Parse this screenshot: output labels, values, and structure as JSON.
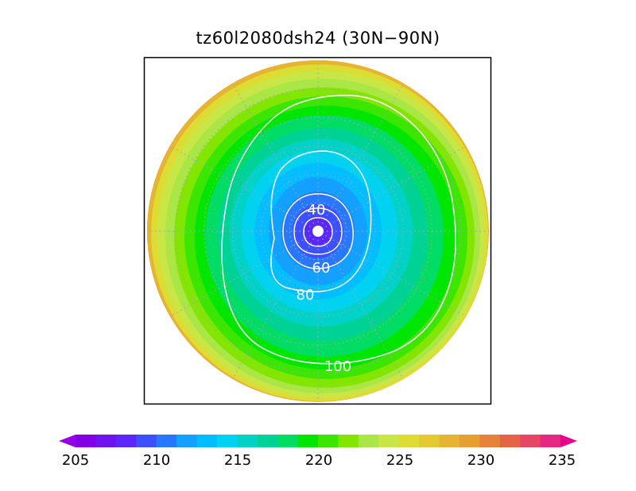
{
  "title": "tz60l2080dsh24 (30N−90N)",
  "colorbar": {
    "min": 205,
    "max": 235,
    "step": 1.25,
    "labels": [
      "205",
      "210",
      "215",
      "220",
      "225",
      "230",
      "235"
    ],
    "colors": [
      "#9600e6",
      "#8200e6",
      "#6e14f0",
      "#5a28ff",
      "#3c50ff",
      "#2878ff",
      "#14a0ff",
      "#00beff",
      "#00d2f0",
      "#00d2c8",
      "#00d296",
      "#00dc64",
      "#00e600",
      "#3ce600",
      "#82e600",
      "#aae646",
      "#c8e646",
      "#dcdc32",
      "#e6c832",
      "#e6b432",
      "#e6a032",
      "#e6823c",
      "#e66446",
      "#e64664",
      "#e62882",
      "#e6008c"
    ]
  },
  "chart_data": {
    "type": "polar-contour-map",
    "projection": "north-polar-stereographic",
    "lat_range": [
      30,
      90
    ],
    "field_range": [
      205,
      235
    ],
    "contour_labels": [
      "40",
      "60",
      "80",
      "100"
    ],
    "grid": "dotted"
  }
}
